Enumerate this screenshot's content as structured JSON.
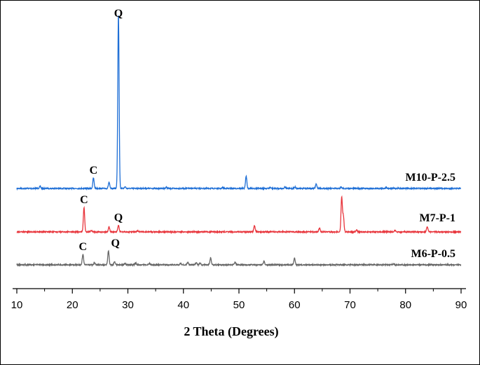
{
  "chart_data": {
    "type": "line",
    "title": "",
    "xlabel": "2 Theta (Degrees)",
    "ylabel": "",
    "xlim": [
      10,
      90
    ],
    "xticks": [
      10,
      20,
      30,
      40,
      50,
      60,
      70,
      80,
      90
    ],
    "grid": false,
    "legend": "labels placed at right end of each trace",
    "series": [
      {
        "name": "M10-P-2.5",
        "color": "#1f6fd6",
        "baseline": 0.02,
        "peaks": [
          {
            "x": 14.2,
            "y": 0.012
          },
          {
            "x": 23.8,
            "y": 0.06
          },
          {
            "x": 26.6,
            "y": 0.035
          },
          {
            "x": 28.3,
            "y": 1.0
          },
          {
            "x": 29.5,
            "y": 0.01
          },
          {
            "x": 36.9,
            "y": 0.008
          },
          {
            "x": 47.1,
            "y": 0.006
          },
          {
            "x": 51.3,
            "y": 0.07
          },
          {
            "x": 55.6,
            "y": 0.006
          },
          {
            "x": 58.3,
            "y": 0.009
          },
          {
            "x": 60.1,
            "y": 0.008
          },
          {
            "x": 63.9,
            "y": 0.025
          },
          {
            "x": 68.4,
            "y": 0.008
          },
          {
            "x": 76.5,
            "y": 0.006
          }
        ],
        "annotations": [
          {
            "text": "C",
            "x": 23.8
          },
          {
            "text": "Q",
            "x": 28.3
          }
        ]
      },
      {
        "name": "M7-P-1",
        "color": "#e8353c",
        "baseline": 0.01,
        "peaks": [
          {
            "x": 22.1,
            "y": 0.14
          },
          {
            "x": 23.4,
            "y": 0.01
          },
          {
            "x": 26.6,
            "y": 0.03
          },
          {
            "x": 28.3,
            "y": 0.038
          },
          {
            "x": 31.8,
            "y": 0.006
          },
          {
            "x": 52.8,
            "y": 0.035
          },
          {
            "x": 64.5,
            "y": 0.022
          },
          {
            "x": 68.5,
            "y": 0.2
          },
          {
            "x": 68.8,
            "y": 0.09
          },
          {
            "x": 71.2,
            "y": 0.01
          },
          {
            "x": 78.1,
            "y": 0.008
          },
          {
            "x": 83.9,
            "y": 0.03
          }
        ],
        "annotations": [
          {
            "text": "C",
            "x": 22.1
          },
          {
            "text": "Q",
            "x": 28.3
          }
        ]
      },
      {
        "name": "M6-P-0.5",
        "color": "#666666",
        "baseline": 0.0,
        "peaks": [
          {
            "x": 21.9,
            "y": 0.06
          },
          {
            "x": 24.0,
            "y": 0.012
          },
          {
            "x": 26.5,
            "y": 0.08
          },
          {
            "x": 27.6,
            "y": 0.02
          },
          {
            "x": 29.5,
            "y": 0.008
          },
          {
            "x": 31.4,
            "y": 0.01
          },
          {
            "x": 33.9,
            "y": 0.008
          },
          {
            "x": 39.5,
            "y": 0.008
          },
          {
            "x": 40.8,
            "y": 0.014
          },
          {
            "x": 42.3,
            "y": 0.012
          },
          {
            "x": 43.0,
            "y": 0.01
          },
          {
            "x": 44.9,
            "y": 0.04
          },
          {
            "x": 49.3,
            "y": 0.014
          },
          {
            "x": 54.5,
            "y": 0.02
          },
          {
            "x": 60.0,
            "y": 0.04
          },
          {
            "x": 77.8,
            "y": 0.005
          }
        ],
        "annotations": [
          {
            "text": "C",
            "x": 21.9
          },
          {
            "text": "Q",
            "x": 26.5
          }
        ]
      }
    ]
  }
}
